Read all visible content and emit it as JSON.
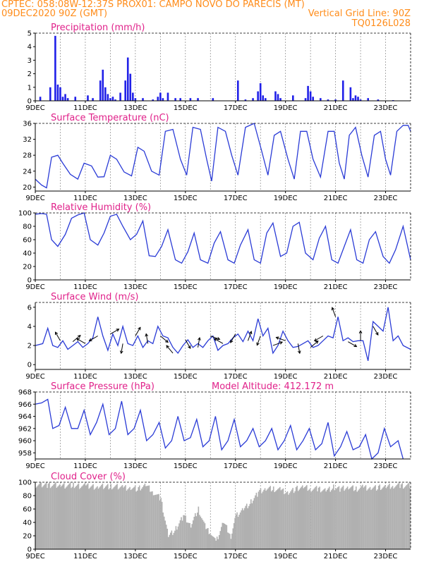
{
  "header": {
    "line1": "CPTEC:   058:08W-12:37S   PROX01: CAMPO NOVO DO PARECIS (MT)",
    "line2": "09DEC2020 90Z (GMT)",
    "grid_note": "Vertical Grid Line: 90Z",
    "code": "TQ0126L028"
  },
  "colors": {
    "title": "#e0218a",
    "header": "#ff8c1a",
    "line": "#2a3bd6",
    "bar": "#2020e8",
    "cloud": "#b0b0b0"
  },
  "chart_data": [
    {
      "id": "precip",
      "type": "bar",
      "title": "Precipitation (mm/h)",
      "xlabels": [
        "9DEC",
        "11DEC",
        "13DEC",
        "15DEC",
        "17DEC",
        "19DEC",
        "21DEC",
        "23DEC"
      ],
      "xlim": [
        0,
        15
      ],
      "ylim": [
        0,
        5
      ],
      "yticks": [
        0,
        1,
        2,
        3,
        4,
        5
      ],
      "x": [
        0.2,
        0.6,
        0.8,
        0.9,
        1.0,
        1.1,
        1.2,
        1.3,
        1.6,
        2.1,
        2.3,
        2.6,
        2.7,
        2.8,
        2.9,
        3.0,
        3.1,
        3.2,
        3.4,
        3.6,
        3.7,
        3.8,
        3.9,
        4.0,
        4.3,
        4.7,
        4.9,
        5.0,
        5.1,
        5.3,
        5.6,
        5.8,
        6.2,
        6.5,
        7.1,
        8.1,
        8.4,
        8.7,
        8.9,
        9.0,
        9.1,
        9.2,
        9.6,
        9.7,
        9.8,
        10.3,
        10.8,
        10.9,
        11.0,
        11.1,
        11.4,
        11.7,
        12.0,
        12.3,
        12.6,
        12.7,
        12.8,
        12.9,
        13.0,
        13.3,
        13.7,
        14.3
      ],
      "values": [
        0.3,
        1.0,
        4.8,
        1.2,
        1.0,
        0.3,
        0.5,
        0.2,
        0.3,
        0.4,
        0.2,
        1.5,
        2.3,
        1.0,
        0.5,
        0.2,
        0.3,
        0.1,
        0.6,
        1.5,
        3.2,
        2.0,
        0.6,
        0.2,
        0.2,
        0.1,
        0.3,
        0.6,
        0.2,
        0.6,
        0.2,
        0.2,
        0.2,
        0.2,
        0.2,
        1.5,
        0.1,
        0.2,
        0.7,
        1.3,
        0.4,
        0.2,
        0.7,
        0.5,
        0.2,
        0.4,
        0.2,
        1.1,
        0.7,
        0.3,
        0.2,
        0.1,
        0.1,
        1.5,
        1.0,
        0.2,
        0.4,
        0.3,
        0.1,
        0.2,
        0.1,
        0.05
      ]
    },
    {
      "id": "temp",
      "type": "line",
      "title": "Surface Temperature (nC)",
      "xlabels": [
        "9DEC",
        "11DEC",
        "13DEC",
        "15DEC",
        "17DEC",
        "19DEC",
        "21DEC",
        "23DEC"
      ],
      "xlim": [
        0,
        15
      ],
      "ylim": [
        19,
        36
      ],
      "yticks": [
        20,
        24,
        28,
        32,
        36
      ],
      "x": [
        0,
        0.25,
        0.45,
        0.65,
        0.9,
        1.1,
        1.4,
        1.7,
        1.95,
        2.25,
        2.5,
        2.75,
        3.0,
        3.25,
        3.55,
        3.85,
        4.1,
        4.35,
        4.65,
        4.95,
        5.2,
        5.5,
        5.8,
        6.05,
        6.3,
        6.6,
        6.85,
        7.05,
        7.3,
        7.6,
        7.85,
        8.1,
        8.4,
        8.75,
        9.05,
        9.3,
        9.55,
        9.8,
        10.1,
        10.35,
        10.6,
        10.85,
        11.1,
        11.4,
        11.7,
        11.95,
        12.15,
        12.35,
        12.55,
        12.8,
        13.05,
        13.3,
        13.55,
        13.8,
        14.0,
        14.2,
        14.45,
        14.7,
        14.9,
        15.0
      ],
      "values": [
        22,
        20.5,
        19.8,
        27.5,
        28,
        26,
        23.2,
        22,
        26,
        25.3,
        22.5,
        22.6,
        28,
        27,
        23.8,
        22.8,
        30,
        29,
        24,
        23,
        34,
        34.5,
        27,
        23,
        35,
        34.5,
        27,
        21.5,
        35,
        34,
        28,
        23,
        35,
        36,
        29,
        23,
        33,
        34,
        27,
        22,
        34,
        34,
        27,
        22.5,
        34,
        34,
        26,
        22,
        33,
        35,
        28,
        22.5,
        33,
        34,
        27,
        23,
        34,
        35.5,
        35.5,
        34
      ]
    },
    {
      "id": "rh",
      "type": "line",
      "title": "Relative Humidity (%)",
      "xlabels": [
        "9DEC",
        "11DEC",
        "13DEC",
        "15DEC",
        "17DEC",
        "19DEC",
        "21DEC",
        "23DEC"
      ],
      "xlim": [
        0,
        15
      ],
      "ylim": [
        0,
        100
      ],
      "yticks": [
        0,
        20,
        40,
        60,
        80,
        100
      ],
      "x": [
        0,
        0.25,
        0.45,
        0.65,
        0.9,
        1.2,
        1.45,
        1.7,
        1.95,
        2.2,
        2.5,
        2.75,
        3.0,
        3.25,
        3.5,
        3.8,
        4.05,
        4.3,
        4.55,
        4.8,
        5.05,
        5.3,
        5.6,
        5.85,
        6.1,
        6.35,
        6.6,
        6.9,
        7.15,
        7.4,
        7.7,
        7.95,
        8.2,
        8.5,
        8.75,
        9.0,
        9.25,
        9.5,
        9.8,
        10.05,
        10.3,
        10.55,
        10.8,
        11.1,
        11.35,
        11.6,
        11.85,
        12.1,
        12.35,
        12.6,
        12.85,
        13.1,
        13.35,
        13.6,
        13.9,
        14.15,
        14.4,
        14.7,
        15.0
      ],
      "values": [
        98,
        99,
        98,
        60,
        50,
        68,
        92,
        97,
        100,
        60,
        52,
        70,
        95,
        98,
        80,
        60,
        68,
        88,
        36,
        35,
        50,
        75,
        30,
        25,
        42,
        70,
        30,
        25,
        55,
        72,
        30,
        25,
        52,
        75,
        30,
        25,
        70,
        85,
        35,
        40,
        80,
        86,
        40,
        30,
        62,
        80,
        30,
        25,
        50,
        75,
        30,
        25,
        60,
        72,
        35,
        25,
        45,
        80,
        30
      ]
    },
    {
      "id": "wind",
      "type": "line",
      "title": "Surface Wind (m/s)",
      "xlabels": [
        "9DEC",
        "11DEC",
        "13DEC",
        "15DEC",
        "17DEC",
        "19DEC",
        "21DEC",
        "23DEC"
      ],
      "xlim": [
        0,
        15
      ],
      "ylim": [
        -0.5,
        6.5
      ],
      "yticks": [
        0,
        2,
        4,
        6
      ],
      "x": [
        0,
        0.3,
        0.5,
        0.7,
        0.9,
        1.1,
        1.3,
        1.5,
        1.7,
        1.9,
        2.1,
        2.3,
        2.5,
        2.7,
        2.9,
        3.1,
        3.3,
        3.5,
        3.7,
        3.9,
        4.1,
        4.3,
        4.5,
        4.7,
        4.9,
        5.1,
        5.3,
        5.5,
        5.7,
        5.9,
        6.1,
        6.3,
        6.5,
        6.7,
        6.9,
        7.1,
        7.3,
        7.5,
        7.7,
        7.9,
        8.1,
        8.3,
        8.5,
        8.7,
        8.9,
        9.1,
        9.3,
        9.5,
        9.7,
        9.9,
        10.1,
        10.3,
        10.5,
        10.7,
        10.9,
        11.1,
        11.3,
        11.5,
        11.7,
        11.9,
        12.1,
        12.3,
        12.5,
        12.7,
        12.9,
        13.1,
        13.3,
        13.5,
        13.7,
        13.9,
        14.1,
        14.3,
        14.5,
        14.7,
        15.0
      ],
      "values": [
        2.0,
        2.2,
        3.8,
        2.0,
        1.8,
        2.5,
        1.6,
        2.0,
        2.4,
        1.8,
        2.2,
        2.8,
        5.0,
        3.0,
        1.5,
        3.2,
        2.0,
        4.0,
        2.2,
        2.0,
        3.0,
        1.8,
        2.5,
        2.2,
        4.0,
        3.0,
        2.8,
        1.8,
        1.2,
        2.0,
        2.6,
        1.8,
        2.2,
        1.8,
        2.5,
        3.0,
        1.5,
        2.0,
        2.2,
        2.8,
        3.2,
        2.4,
        3.5,
        2.5,
        4.8,
        3.0,
        3.8,
        1.2,
        2.0,
        3.5,
        2.5,
        1.8,
        1.9,
        2.2,
        2.5,
        1.8,
        2.0,
        2.5,
        3.0,
        2.8,
        5.0,
        2.5,
        2.8,
        2.4,
        2.5,
        2.5,
        0.4,
        4.5,
        4.0,
        3.5,
        6.0,
        2.5,
        3.0,
        2.0,
        1.6
      ]
    },
    {
      "id": "pres",
      "type": "line",
      "title": "Surface Pressure (hPa)",
      "note": "Model Altitude: 412.172 m",
      "xlabels": [
        "9DEC",
        "11DEC",
        "13DEC",
        "15DEC",
        "17DEC",
        "19DEC",
        "21DEC",
        "23DEC"
      ],
      "xlim": [
        0,
        15
      ],
      "ylim": [
        957,
        968
      ],
      "yticks": [
        958,
        960,
        962,
        964,
        966,
        968
      ],
      "x": [
        0,
        0.25,
        0.5,
        0.7,
        0.95,
        1.2,
        1.45,
        1.7,
        1.95,
        2.2,
        2.45,
        2.7,
        2.95,
        3.2,
        3.45,
        3.7,
        3.95,
        4.2,
        4.45,
        4.7,
        4.95,
        5.2,
        5.45,
        5.7,
        5.95,
        6.2,
        6.45,
        6.7,
        6.95,
        7.2,
        7.45,
        7.7,
        7.95,
        8.2,
        8.45,
        8.7,
        8.95,
        9.2,
        9.45,
        9.7,
        9.95,
        10.2,
        10.45,
        10.7,
        10.95,
        11.2,
        11.45,
        11.7,
        11.95,
        12.2,
        12.45,
        12.7,
        12.95,
        13.2,
        13.45,
        13.7,
        13.95,
        14.2,
        14.5,
        14.7
      ],
      "values": [
        966,
        966.2,
        966.8,
        962,
        962.5,
        965.5,
        962,
        962,
        965,
        961,
        963,
        966,
        961,
        962,
        966.5,
        961,
        962,
        965,
        960,
        961,
        963,
        958.8,
        960,
        964,
        960,
        960.5,
        963.5,
        959,
        960,
        964,
        958.5,
        960,
        963.5,
        959,
        960,
        962,
        959,
        960,
        962,
        958.5,
        960,
        962.5,
        958.5,
        960,
        962,
        958.5,
        959.5,
        963,
        957.5,
        959,
        961.5,
        958.5,
        959,
        961,
        957,
        958,
        962,
        959,
        960,
        957
      ]
    },
    {
      "id": "cloud",
      "type": "area",
      "title": "Cloud Cover (%)",
      "xlabels": [
        "9DEC",
        "11DEC",
        "13DEC",
        "15DEC",
        "17DEC",
        "19DEC",
        "21DEC",
        "23DEC"
      ],
      "xlim": [
        0,
        15
      ],
      "ylim": [
        0,
        100
      ],
      "yticks": [
        0,
        20,
        40,
        60,
        80,
        100
      ],
      "x": [
        0,
        0.5,
        1.0,
        1.5,
        2.0,
        2.5,
        3.0,
        3.5,
        3.8,
        4.1,
        4.4,
        4.7,
        5.0,
        5.3,
        5.6,
        5.9,
        6.2,
        6.5,
        6.8,
        7.0,
        7.2,
        7.5,
        7.8,
        8.0,
        8.3,
        8.6,
        8.9,
        9.2,
        9.5,
        9.8,
        10.1,
        10.4,
        10.7,
        11.0,
        11.3,
        11.6,
        11.9,
        12.2,
        12.5,
        12.8,
        13.1,
        13.4,
        13.7,
        14.0,
        14.3,
        14.6,
        15.0
      ],
      "values": [
        96,
        96,
        95,
        95,
        94,
        93,
        94,
        92,
        92,
        90,
        95,
        85,
        75,
        20,
        30,
        50,
        35,
        60,
        30,
        25,
        10,
        40,
        20,
        50,
        60,
        70,
        85,
        90,
        90,
        88,
        85,
        90,
        92,
        90,
        90,
        88,
        92,
        90,
        92,
        90,
        92,
        92,
        92,
        92,
        95,
        95,
        95
      ]
    }
  ]
}
